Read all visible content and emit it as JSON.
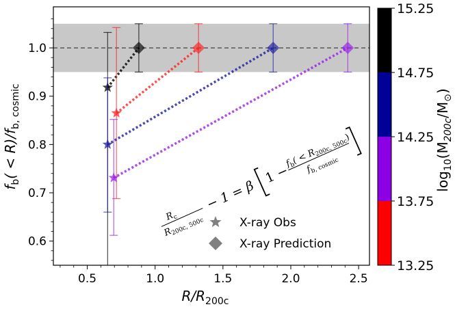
{
  "chart_data": {
    "type": "scatter",
    "xlabel_main": "R/R",
    "xlabel_sub": "200c",
    "ylabel": {
      "f1": "f",
      "s1": "b",
      "mid": "( < R)/",
      "f2": "f",
      "s2": "b, cosmic"
    },
    "xlim": [
      0.25,
      2.58
    ],
    "ylim": [
      0.55,
      1.085
    ],
    "x_ticks": [
      0.5,
      1.0,
      1.5,
      2.0,
      2.5
    ],
    "x_tick_labels": [
      "0.5",
      "1.0",
      "1.5",
      "2.0",
      "2.5"
    ],
    "y_ticks": [
      0.6,
      0.7,
      0.8,
      0.9,
      1.0
    ],
    "y_tick_labels": [
      "0.6",
      "0.7",
      "0.8",
      "0.9",
      "1.0"
    ],
    "reference_line": 1.0,
    "shaded_band": [
      0.95,
      1.05
    ],
    "groups": [
      {
        "color": "#000000",
        "obs": {
          "x": 0.65,
          "y": 0.918,
          "yerr_low": 0.0,
          "yerr_high": 1.032
        },
        "pred": {
          "x": 0.88,
          "y": 1.0,
          "yerr_low": 0.95,
          "yerr_high": 1.05
        }
      },
      {
        "color": "#ff2020",
        "obs": {
          "x": 0.715,
          "y": 0.865,
          "yerr_low": 0.688,
          "yerr_high": 1.042
        },
        "pred": {
          "x": 1.32,
          "y": 1.0,
          "yerr_low": 0.95,
          "yerr_high": 1.05
        }
      },
      {
        "color": "#1c1c9c",
        "obs": {
          "x": 0.65,
          "y": 0.8,
          "yerr_low": 0.66,
          "yerr_high": 0.938
        },
        "pred": {
          "x": 1.87,
          "y": 1.0,
          "yerr_low": 0.95,
          "yerr_high": 1.05
        }
      },
      {
        "color": "#9a1ee6",
        "obs": {
          "x": 0.695,
          "y": 0.731,
          "yerr_low": 0.612,
          "yerr_high": 0.852
        },
        "pred": {
          "x": 2.42,
          "y": 1.0,
          "yerr_low": 0.95,
          "yerr_high": 1.05
        }
      }
    ],
    "legend": {
      "obs_label": "X-ray Obs",
      "pred_label": "X-ray Prediction"
    },
    "equation": {
      "frac1_num": "R",
      "frac1_num_sub": "c",
      "frac1_den": "R",
      "frac1_den_sub": "200c, 500c",
      "minus_one_eq": "− 1 = β",
      "one_minus": "1 −",
      "frac2_num_f": "f",
      "frac2_num_f_sub": "b",
      "frac2_num_rest": "( < R",
      "frac2_num_rest_sub": "200c, 500c",
      "frac2_num_close": ")",
      "frac2_den_f": "f",
      "frac2_den_f_sub": "b, cosmic"
    },
    "colorbar": {
      "label_main": "log",
      "label_sub": "10",
      "label_rest": "(M",
      "label_rest_sub": "200c",
      "label_rest2": "/M",
      "label_rest2_sub": "⊙",
      "label_close": ")",
      "ticks": [
        "13.25",
        "13.75",
        "14.25",
        "14.75",
        "15.25"
      ],
      "segments": [
        {
          "from": 13.25,
          "to": 13.75,
          "color": "#ff0000"
        },
        {
          "from": 13.75,
          "to": 14.25,
          "color": "#8c00e6"
        },
        {
          "from": 14.25,
          "to": 14.75,
          "color": "#000096"
        },
        {
          "from": 14.75,
          "to": 15.25,
          "color": "#000000"
        }
      ]
    }
  }
}
